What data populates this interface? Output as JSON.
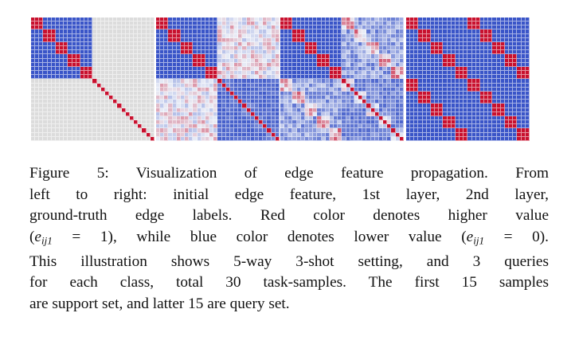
{
  "figure": {
    "grid_size": 30,
    "support_size": 15,
    "ways": 5,
    "shots": 3,
    "colors": {
      "high": "#c8102e",
      "low": "#3a55c8",
      "empty": "#dcdcdc"
    },
    "panels": [
      {
        "id": "initial-edge-feature"
      },
      {
        "id": "layer-1"
      },
      {
        "id": "layer-2"
      },
      {
        "id": "ground-truth-edge-labels"
      }
    ]
  },
  "caption": {
    "line1": "Figure 5: Visualization of edge feature propagation. From",
    "line2": "left to right:  initial edge feature, 1st layer, 2nd layer,",
    "line3": "ground-truth edge labels.  Red color denotes higher value",
    "line4_a": "(",
    "line4_eq1": "e",
    "line4_sub1": "ij1",
    "line4_b": " = 1), while blue color denotes lower value (",
    "line4_eq2": "e",
    "line4_sub2": "ij1",
    "line4_c": " = 0).",
    "line5": "This illustration shows 5-way 3-shot setting, and 3 queries",
    "line6": "for each class, total 30 task-samples.  The first 15 samples",
    "line7": "are support set, and latter 15 are query set."
  }
}
